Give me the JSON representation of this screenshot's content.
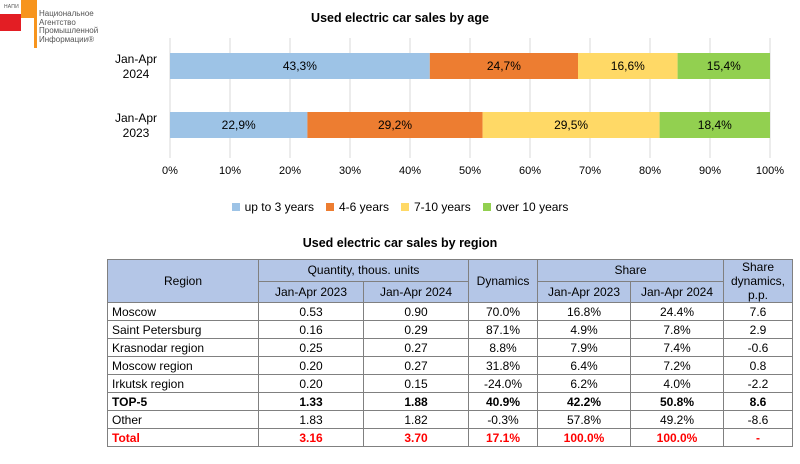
{
  "logo": {
    "abbr": "НАПИ",
    "name": "Национальное\nАгентство\nПромышленной\nИнформации®"
  },
  "chart_data": [
    {
      "type": "bar",
      "orientation": "horizontal-stacked-100",
      "title": "Used electric car sales by age",
      "categories": [
        "Jan-Apr\n2024",
        "Jan-Apr\n2023"
      ],
      "series": [
        {
          "name": "up to 3 years",
          "color": "#9dc3e6",
          "values": [
            43.3,
            22.9
          ],
          "labels": [
            "43,3%",
            "22,9%"
          ]
        },
        {
          "name": "4-6 years",
          "color": "#ed7d31",
          "values": [
            24.7,
            29.2
          ],
          "labels": [
            "24,7%",
            "29,2%"
          ]
        },
        {
          "name": "7-10 years",
          "color": "#ffd966",
          "values": [
            16.6,
            29.5
          ],
          "labels": [
            "16,6%",
            "29,5%"
          ]
        },
        {
          "name": "over 10 years",
          "color": "#92d050",
          "values": [
            15.4,
            18.4
          ],
          "labels": [
            "15,4%",
            "18,4%"
          ]
        }
      ],
      "xlim": [
        0,
        100
      ],
      "xticks": [
        "0%",
        "10%",
        "20%",
        "30%",
        "40%",
        "50%",
        "60%",
        "70%",
        "80%",
        "90%",
        "100%"
      ],
      "grid": true,
      "legend": "bottom"
    },
    {
      "type": "table",
      "title": "Used electric car sales by region",
      "headers": {
        "region": "Region",
        "quantity": "Quantity, thous. units",
        "dynamics": "Dynamics",
        "share": "Share",
        "share_dynamics": "Share dynamics, p.p.",
        "period1": "Jan-Apr 2023",
        "period2": "Jan-Apr 2024"
      },
      "rows": [
        {
          "region": "Moscow",
          "q2023": "0.53",
          "q2024": "0.90",
          "dyn": "70.0%",
          "s2023": "16.8%",
          "s2024": "24.4%",
          "sdyn": "7.6"
        },
        {
          "region": "Saint Petersburg",
          "q2023": "0.16",
          "q2024": "0.29",
          "dyn": "87.1%",
          "s2023": "4.9%",
          "s2024": "7.8%",
          "sdyn": "2.9"
        },
        {
          "region": "Krasnodar region",
          "q2023": "0.25",
          "q2024": "0.27",
          "dyn": "8.8%",
          "s2023": "7.9%",
          "s2024": "7.4%",
          "sdyn": "-0.6"
        },
        {
          "region": "Moscow region",
          "q2023": "0.20",
          "q2024": "0.27",
          "dyn": "31.8%",
          "s2023": "6.4%",
          "s2024": "7.2%",
          "sdyn": "0.8"
        },
        {
          "region": "Irkutsk region",
          "q2023": "0.20",
          "q2024": "0.15",
          "dyn": "-24.0%",
          "s2023": "6.2%",
          "s2024": "4.0%",
          "sdyn": "-2.2"
        },
        {
          "region": "TOP-5",
          "q2023": "1.33",
          "q2024": "1.88",
          "dyn": "40.9%",
          "s2023": "42.2%",
          "s2024": "50.8%",
          "sdyn": "8.6"
        },
        {
          "region": "Other",
          "q2023": "1.83",
          "q2024": "1.82",
          "dyn": "-0.3%",
          "s2023": "57.8%",
          "s2024": "49.2%",
          "sdyn": "-8.6"
        },
        {
          "region": "Total",
          "q2023": "3.16",
          "q2024": "3.70",
          "dyn": "17.1%",
          "s2023": "100.0%",
          "s2024": "100.0%",
          "sdyn": "-"
        }
      ],
      "colors": {
        "header_bg": "#b4c6e7",
        "total_text": "#ff0000"
      }
    }
  ]
}
